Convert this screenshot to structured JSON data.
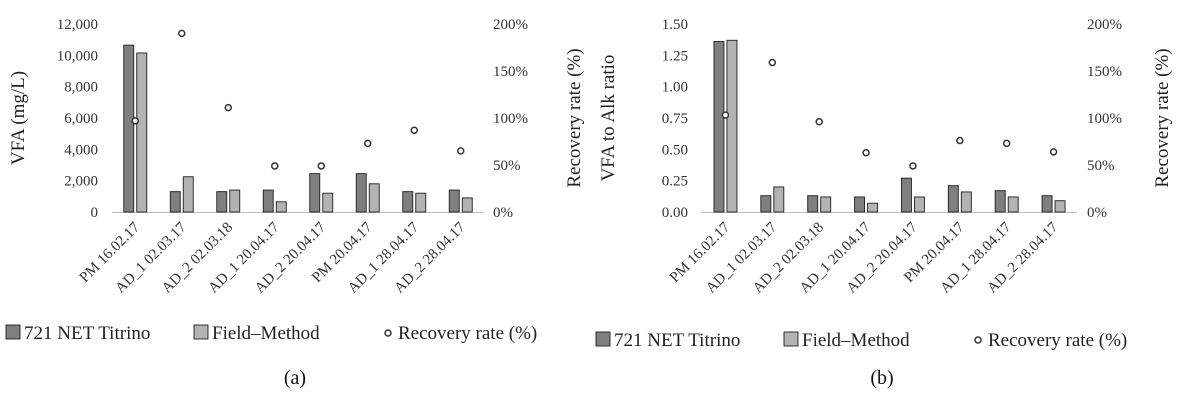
{
  "colors": {
    "titrino": "#7f7f7f",
    "field": "#b3b3b3",
    "bar_stroke": "#1f1f1f",
    "marker_fill": "#ffffff",
    "marker_stroke": "#333333",
    "axis": "#bfbfbf"
  },
  "legend": {
    "titrino": "721 NET Titrino",
    "field": "Field–Method",
    "recovery": "Recovery rate (%)"
  },
  "chart_data": [
    {
      "type": "bar",
      "panel_label": "(a)",
      "categories": [
        "PM 16.02.17",
        "AD_1 02.03.17",
        "AD_2 02.03.18",
        "AD_1 20.04.17",
        "AD_2 20.04.17",
        "PM 20.04.17",
        "AD_1 28.04.17",
        "AD_2 28.04.17"
      ],
      "series": [
        {
          "name": "721 NET Titrino",
          "axis": "left",
          "kind": "bar",
          "values": [
            10650,
            1300,
            1300,
            1400,
            2450,
            2450,
            1300,
            1400
          ]
        },
        {
          "name": "Field–Method",
          "axis": "left",
          "kind": "bar",
          "values": [
            10150,
            2250,
            1400,
            650,
            1200,
            1800,
            1200,
            900
          ]
        },
        {
          "name": "Recovery rate (%)",
          "axis": "right",
          "kind": "scatter",
          "values": [
            97,
            190,
            111,
            49,
            49,
            73,
            87,
            65
          ]
        }
      ],
      "ylabel": "VFA (mg/L)",
      "ylabel_right": "Recovery rate (%)",
      "ylim": [
        0,
        12000
      ],
      "yticks": [
        "0",
        "2,000",
        "4,000",
        "6,000",
        "8,000",
        "10,000",
        "12,000"
      ],
      "ylim_right": [
        0,
        200
      ],
      "yticks_right": [
        "0%",
        "50%",
        "100%",
        "150%",
        "200%"
      ],
      "legend_position": "bottom",
      "grid": false
    },
    {
      "type": "bar",
      "panel_label": "(b)",
      "categories": [
        "PM 16.02.17",
        "AD_1 02.03.17",
        "AD_2 02.03.18",
        "AD_1 20.04.17",
        "AD_2 20.04.17",
        "PM 20.04.17",
        "AD_1 28.04.17",
        "AD_2 28.04.17"
      ],
      "series": [
        {
          "name": "721 NET Titrino",
          "axis": "left",
          "kind": "bar",
          "values": [
            1.36,
            0.13,
            0.13,
            0.12,
            0.27,
            0.21,
            0.17,
            0.13
          ]
        },
        {
          "name": "Field–Method",
          "axis": "left",
          "kind": "bar",
          "values": [
            1.37,
            0.2,
            0.12,
            0.07,
            0.12,
            0.16,
            0.12,
            0.09
          ]
        },
        {
          "name": "Recovery rate (%)",
          "axis": "right",
          "kind": "scatter",
          "values": [
            103,
            159,
            96,
            63,
            49,
            76,
            73,
            64
          ]
        }
      ],
      "ylabel": "VFA to Alk ratio",
      "ylabel_right": "Recovery rate (%)",
      "ylim": [
        0,
        1.5
      ],
      "yticks": [
        "0.00",
        "0.25",
        "0.50",
        "0.75",
        "1.00",
        "1.25",
        "1.50"
      ],
      "ylim_right": [
        0,
        200
      ],
      "yticks_right": [
        "0%",
        "50%",
        "100%",
        "150%",
        "200%"
      ],
      "legend_position": "bottom",
      "grid": false
    }
  ]
}
